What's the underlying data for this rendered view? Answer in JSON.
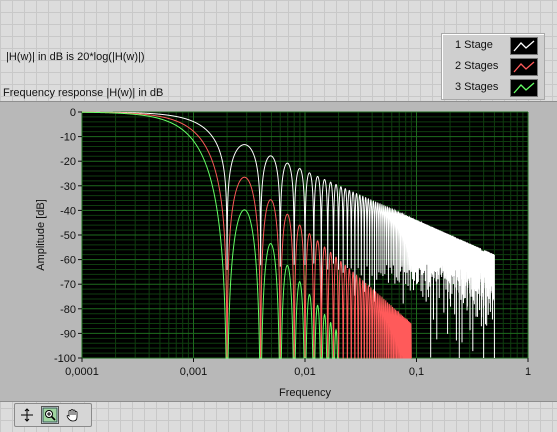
{
  "note": "|H(w)| in dB is 20*log(|H(w)|)",
  "graph_caption": "Frequency response |H(w)| in dB",
  "legend": [
    {
      "label": "1 Stage",
      "color": "#ffffff",
      "icon": "white-line-sample-icon"
    },
    {
      "label": "2 Stages",
      "color": "#ff5a5a",
      "icon": "red-line-sample-icon"
    },
    {
      "label": "3 Stages",
      "color": "#66ff66",
      "icon": "green-line-sample-icon"
    }
  ],
  "toolbar": {
    "tools": [
      {
        "name": "cursor-move-tool-icon",
        "active": false
      },
      {
        "name": "zoom-tool-icon",
        "active": true
      },
      {
        "name": "pan-hand-tool-icon",
        "active": false
      }
    ]
  },
  "chart_data": {
    "type": "line",
    "title": "Frequency response |H(w)| in dB",
    "xlabel": "Frequency",
    "ylabel": "Amplitude [dB]",
    "xscale": "log",
    "xlim": [
      0.0001,
      1
    ],
    "ylim": [
      -100,
      0
    ],
    "xticks": [
      "0,0001",
      "0,001",
      "0,01",
      "0,1",
      "1"
    ],
    "yticks": [
      "0",
      "-10",
      "-20",
      "-30",
      "-40",
      "-50",
      "-60",
      "-70",
      "-80",
      "-90",
      "-100"
    ],
    "grid": true,
    "background": "#000000",
    "grid_color": "#1e6b1e",
    "legend_position": "top-right, outside plot",
    "series": [
      {
        "name": "1 Stage",
        "color": "#ffffff",
        "x_max": 0.5,
        "first_null": 0.002,
        "sidelobe_peaks_db": [
          -13.3,
          -17.8,
          -20.8,
          -23.0
        ]
      },
      {
        "name": "2 Stages",
        "color": "#ff5a5a",
        "x_max": 0.09,
        "first_null": 0.002,
        "sidelobe_peaks_db": [
          -26.5,
          -35.6,
          -41.6,
          -46.0
        ]
      },
      {
        "name": "3 Stages",
        "color": "#66ff66",
        "x_max": 0.02,
        "first_null": 0.002,
        "sidelobe_peaks_db": [
          -39.8,
          -53.4,
          -62.4,
          -69.0
        ]
      }
    ]
  }
}
